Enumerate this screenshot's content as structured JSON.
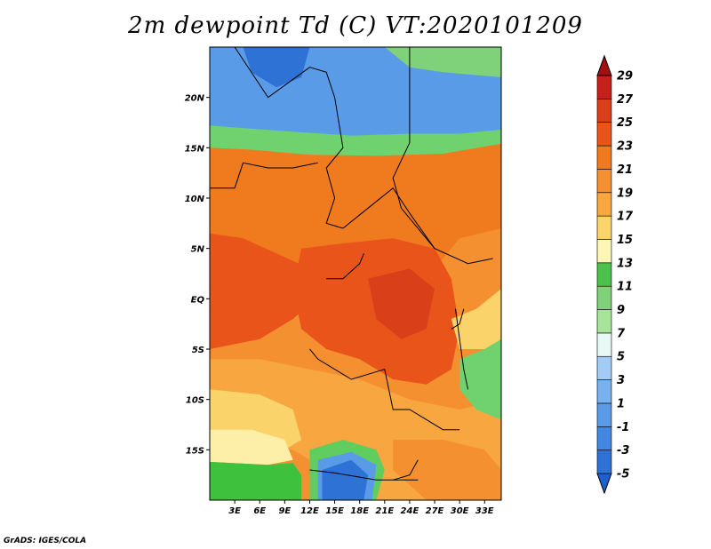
{
  "title": "2m dewpoint Td (C) VT:2020101209",
  "credit": "GrADS: IGES/COLA",
  "map": {
    "lon_range": [
      0,
      35
    ],
    "lat_range": [
      -20,
      25
    ],
    "lon_ticks": [
      {
        "value": 3,
        "label": "3E"
      },
      {
        "value": 6,
        "label": "6E"
      },
      {
        "value": 9,
        "label": "9E"
      },
      {
        "value": 12,
        "label": "12E"
      },
      {
        "value": 15,
        "label": "15E"
      },
      {
        "value": 18,
        "label": "18E"
      },
      {
        "value": 21,
        "label": "21E"
      },
      {
        "value": 24,
        "label": "24E"
      },
      {
        "value": 27,
        "label": "27E"
      },
      {
        "value": 30,
        "label": "30E"
      },
      {
        "value": 33,
        "label": "33E"
      }
    ],
    "lat_ticks": [
      {
        "value": 20,
        "label": "20N"
      },
      {
        "value": 15,
        "label": "15N"
      },
      {
        "value": 10,
        "label": "10N"
      },
      {
        "value": 5,
        "label": "5N"
      },
      {
        "value": 0,
        "label": "EQ"
      },
      {
        "value": -5,
        "label": "5S"
      },
      {
        "value": -10,
        "label": "10S"
      },
      {
        "value": -15,
        "label": "15S"
      }
    ],
    "regions": [
      {
        "name": "sahara-dry-blue",
        "color": "#5a9be8",
        "polygon": [
          [
            0,
            25
          ],
          [
            35,
            25
          ],
          [
            35,
            16.5
          ],
          [
            28,
            15.8
          ],
          [
            20,
            15.4
          ],
          [
            14,
            15.2
          ],
          [
            6,
            15.6
          ],
          [
            0,
            16.2
          ]
        ]
      },
      {
        "name": "sahara-deep-blue",
        "color": "#2f72d6",
        "polygon": [
          [
            4,
            25
          ],
          [
            12,
            25
          ],
          [
            11,
            22
          ],
          [
            8,
            21
          ],
          [
            5,
            22.5
          ]
        ]
      },
      {
        "name": "green-northeast",
        "color": "#7fd17a",
        "polygon": [
          [
            21,
            25
          ],
          [
            35,
            25
          ],
          [
            35,
            22
          ],
          [
            28,
            22.5
          ],
          [
            24,
            23
          ]
        ]
      },
      {
        "name": "sahel-green",
        "color": "#6fd26f",
        "polygon": [
          [
            0,
            17.2
          ],
          [
            10,
            16.6
          ],
          [
            17,
            16.2
          ],
          [
            24,
            16.4
          ],
          [
            30,
            16.4
          ],
          [
            35,
            16.8
          ],
          [
            35,
            15.4
          ],
          [
            28,
            14.4
          ],
          [
            20,
            14.2
          ],
          [
            12,
            14.3
          ],
          [
            5,
            14.8
          ],
          [
            0,
            15
          ]
        ]
      },
      {
        "name": "west-africa-orange",
        "color": "#f07a1e",
        "polygon": [
          [
            0,
            15
          ],
          [
            5,
            14.8
          ],
          [
            12,
            14.3
          ],
          [
            20,
            14.2
          ],
          [
            28,
            14.4
          ],
          [
            35,
            15.4
          ],
          [
            35,
            7
          ],
          [
            30,
            6
          ],
          [
            26,
            2
          ],
          [
            22,
            -1
          ],
          [
            18,
            -1
          ],
          [
            14,
            1
          ],
          [
            10,
            3
          ],
          [
            6,
            4
          ],
          [
            0,
            6
          ]
        ]
      },
      {
        "name": "guinea-coast-red",
        "color": "#e9541a",
        "polygon": [
          [
            0,
            6.5
          ],
          [
            4,
            6
          ],
          [
            8,
            4.5
          ],
          [
            12,
            3
          ],
          [
            14,
            1
          ],
          [
            10,
            -2
          ],
          [
            6,
            -4
          ],
          [
            0,
            -5
          ]
        ]
      },
      {
        "name": "congo-basin-red",
        "color": "#e9541a",
        "polygon": [
          [
            11,
            5
          ],
          [
            16,
            5.5
          ],
          [
            22,
            6
          ],
          [
            27,
            5
          ],
          [
            29,
            2
          ],
          [
            30,
            -3
          ],
          [
            29,
            -7
          ],
          [
            26,
            -8.5
          ],
          [
            22,
            -8
          ],
          [
            18,
            -6
          ],
          [
            14,
            -5
          ],
          [
            11,
            -3
          ],
          [
            10,
            1
          ]
        ]
      },
      {
        "name": "congo-core-dark",
        "color": "#d9401a",
        "polygon": [
          [
            19,
            2
          ],
          [
            24,
            3
          ],
          [
            27,
            1
          ],
          [
            26,
            -3
          ],
          [
            23,
            -4
          ],
          [
            20,
            -2
          ]
        ]
      },
      {
        "name": "angola-light-orange",
        "color": "#f7a640",
        "polygon": [
          [
            0,
            -6
          ],
          [
            6,
            -6
          ],
          [
            12,
            -7
          ],
          [
            18,
            -8
          ],
          [
            24,
            -10
          ],
          [
            30,
            -11
          ],
          [
            35,
            -10
          ],
          [
            35,
            -20
          ],
          [
            28,
            -20
          ],
          [
            20,
            -20
          ],
          [
            14,
            -17
          ],
          [
            10,
            -15
          ],
          [
            0,
            -14
          ]
        ]
      },
      {
        "name": "atlantic-south-yellow",
        "color": "#fbd36b",
        "polygon": [
          [
            0,
            -9
          ],
          [
            6,
            -9.5
          ],
          [
            10,
            -11
          ],
          [
            11,
            -14
          ],
          [
            8,
            -15.5
          ],
          [
            0,
            -15.5
          ]
        ]
      },
      {
        "name": "atlantic-south-pale",
        "color": "#fdeea8",
        "polygon": [
          [
            0,
            -13
          ],
          [
            5,
            -13
          ],
          [
            9,
            -14
          ],
          [
            10,
            -16
          ],
          [
            7,
            -16.5
          ],
          [
            0,
            -16.2
          ]
        ]
      },
      {
        "name": "atlantic-south-green",
        "color": "#3ec23e",
        "polygon": [
          [
            0,
            -16.2
          ],
          [
            7,
            -16.5
          ],
          [
            10,
            -16.3
          ],
          [
            11,
            -17.5
          ],
          [
            11,
            -20
          ],
          [
            0,
            -20
          ]
        ]
      },
      {
        "name": "namibia-green",
        "color": "#5fce5f",
        "polygon": [
          [
            12,
            -15
          ],
          [
            16,
            -14
          ],
          [
            20,
            -15
          ],
          [
            21,
            -17
          ],
          [
            20,
            -20
          ],
          [
            12,
            -20
          ]
        ]
      },
      {
        "name": "namibia-blue",
        "color": "#5a9be8",
        "polygon": [
          [
            13,
            -16
          ],
          [
            17,
            -15.2
          ],
          [
            20,
            -16.5
          ],
          [
            19.5,
            -20
          ],
          [
            13,
            -20
          ]
        ]
      },
      {
        "name": "namibia-deep-blue",
        "color": "#2f72d6",
        "polygon": [
          [
            13.5,
            -17
          ],
          [
            17,
            -16
          ],
          [
            19,
            -17.5
          ],
          [
            18.5,
            -20
          ],
          [
            13.5,
            -20
          ]
        ]
      },
      {
        "name": "zambia-orange",
        "color": "#f59030",
        "polygon": [
          [
            22,
            -14
          ],
          [
            28,
            -14
          ],
          [
            33,
            -15
          ],
          [
            35,
            -17
          ],
          [
            35,
            -20
          ],
          [
            26,
            -20
          ],
          [
            22,
            -17
          ]
        ]
      },
      {
        "name": "east-africa-lakes-green",
        "color": "#6fd26f",
        "polygon": [
          [
            30,
            -6
          ],
          [
            33,
            -5
          ],
          [
            35,
            -4
          ],
          [
            35,
            -12
          ],
          [
            32,
            -11
          ],
          [
            30,
            -9
          ]
        ]
      },
      {
        "name": "east-africa-light",
        "color": "#fbd36b",
        "polygon": [
          [
            29,
            -2
          ],
          [
            32,
            -1
          ],
          [
            35,
            1
          ],
          [
            35,
            -4
          ],
          [
            33,
            -5
          ],
          [
            30,
            -5
          ]
        ]
      }
    ]
  },
  "colorbar": {
    "levels": [
      "-5",
      "-3",
      "-1",
      "1",
      "3",
      "5",
      "7",
      "9",
      "11",
      "13",
      "15",
      "17",
      "19",
      "21",
      "23",
      "25",
      "27",
      "29"
    ],
    "colors": [
      "#1e5fd0",
      "#2f72d6",
      "#4487e0",
      "#5a9be8",
      "#78b2ef",
      "#a3ccf5",
      "#e8f8f5",
      "#a8e39a",
      "#7fd17a",
      "#4cc24c",
      "#fdf6b4",
      "#fbd36b",
      "#f7a640",
      "#f59030",
      "#f07a1e",
      "#e9541a",
      "#d9401a",
      "#c7201a",
      "#a60f12"
    ]
  },
  "colors": {
    "border": "#000000",
    "background": "#ffffff"
  }
}
